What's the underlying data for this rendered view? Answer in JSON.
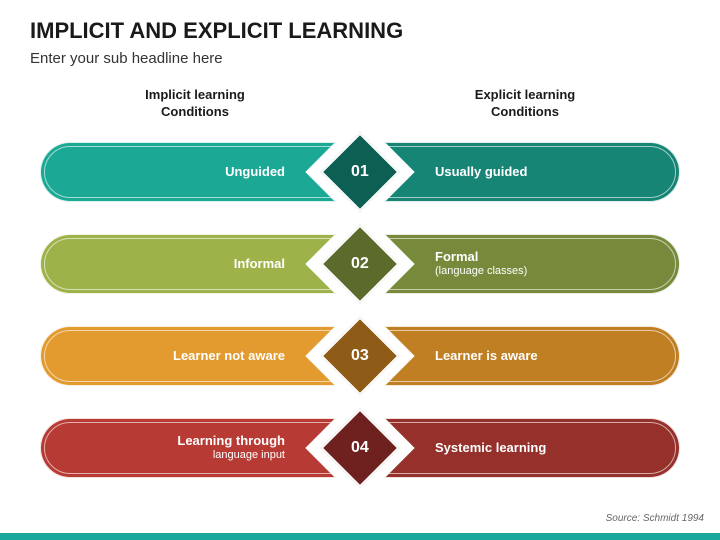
{
  "title": "IMPLICIT AND EXPLICIT LEARNING",
  "subtitle": "Enter your sub headline here",
  "leftHeader": "Implicit learning\nConditions",
  "rightHeader": "Explicit learning\nConditions",
  "source": "Source: Schmidt 1994",
  "accentBar": "#1aa89c",
  "rows": [
    {
      "num": "01",
      "left": {
        "text": "Unguided",
        "sub": ""
      },
      "right": {
        "text": "Usually guided",
        "sub": ""
      },
      "leftColor": "#1ba894",
      "rightColor": "#178576",
      "diamondColor": "#0d5f54",
      "diamondBorder": "#ffffff"
    },
    {
      "num": "02",
      "left": {
        "text": "Informal",
        "sub": ""
      },
      "right": {
        "text": "Formal",
        "sub": "(language classes)"
      },
      "leftColor": "#9eb24a",
      "rightColor": "#778a3b",
      "diamondColor": "#5a6b2b",
      "diamondBorder": "#ffffff"
    },
    {
      "num": "03",
      "left": {
        "text": "Learner not aware",
        "sub": ""
      },
      "right": {
        "text": "Learner is aware",
        "sub": ""
      },
      "leftColor": "#e39a2e",
      "rightColor": "#c17f23",
      "diamondColor": "#8f5c18",
      "diamondBorder": "#ffffff"
    },
    {
      "num": "04",
      "left": {
        "text": "Learning through",
        "sub": "language input"
      },
      "right": {
        "text": "Systemic learning",
        "sub": ""
      },
      "leftColor": "#b73a34",
      "rightColor": "#96302b",
      "diamondColor": "#6e211e",
      "diamondBorder": "#ffffff"
    }
  ]
}
